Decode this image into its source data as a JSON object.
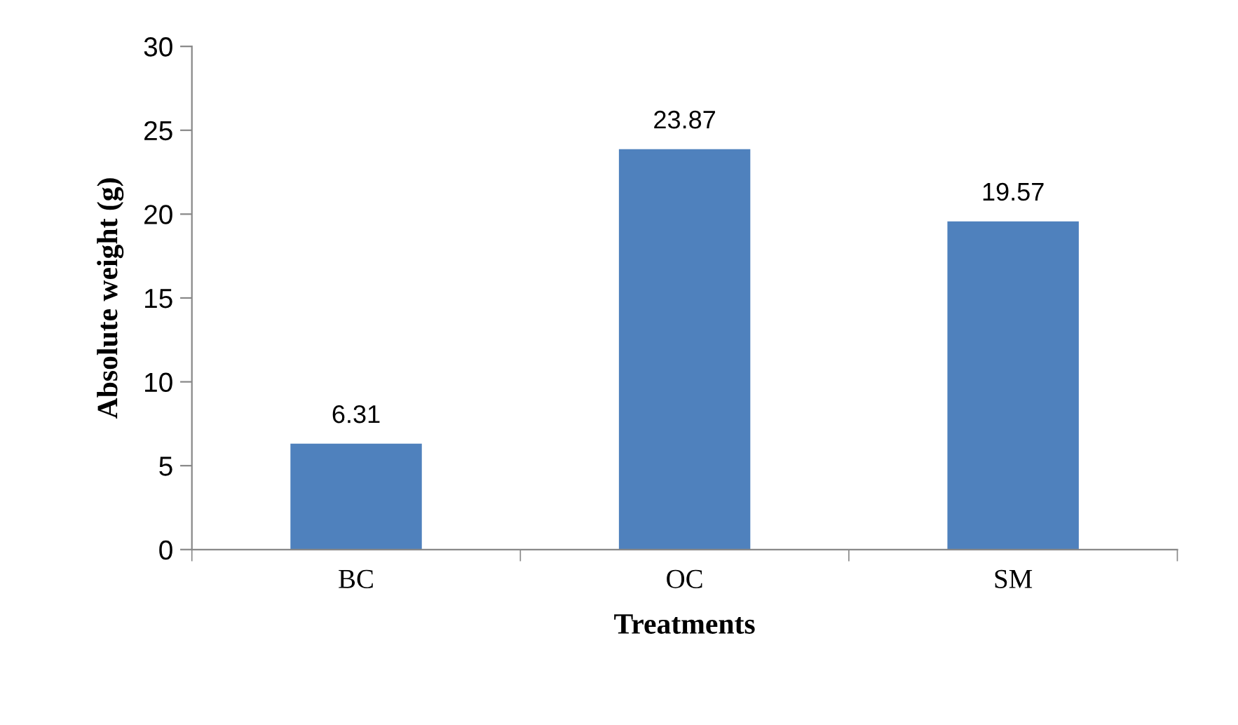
{
  "chart_data": {
    "type": "bar",
    "xlabel": "Treatments",
    "ylabel": "Absolute weight (g)",
    "categories": [
      "BC",
      "OC",
      "SM"
    ],
    "series": [
      {
        "color": "#4f81bd",
        "values": [
          6.31,
          23.87,
          19.57
        ]
      }
    ],
    "ylim": [
      0,
      30
    ],
    "yticks": [
      0,
      5,
      10,
      15,
      20,
      25,
      30
    ],
    "data_labels": true,
    "grid": false,
    "legend": false
  }
}
